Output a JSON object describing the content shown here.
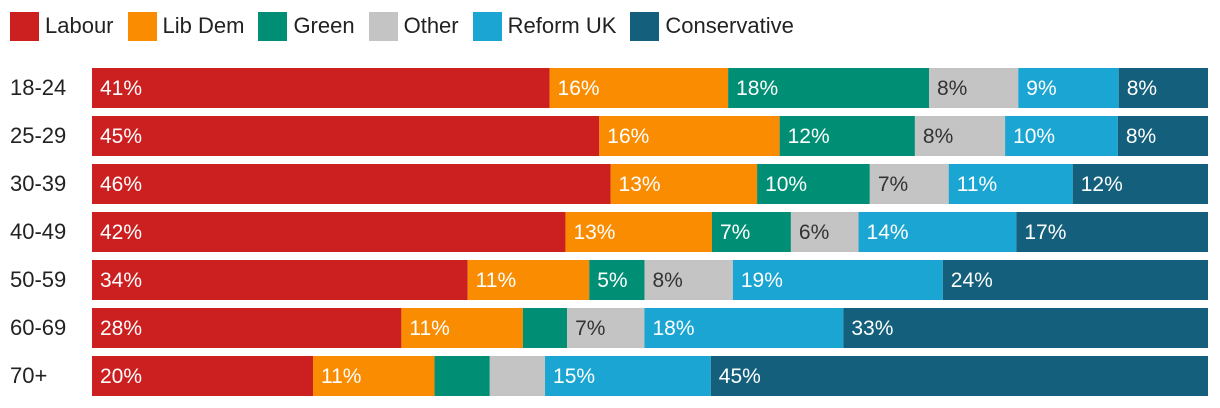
{
  "chart_data": {
    "type": "bar",
    "orientation": "horizontal",
    "stacked": true,
    "normalized": true,
    "title": "",
    "xlabel": "",
    "ylabel": "",
    "xlim": [
      0,
      100
    ],
    "grid": false,
    "legend": "top-left",
    "categories": [
      "18-24",
      "25-29",
      "30-39",
      "40-49",
      "50-59",
      "60-69",
      "70+"
    ],
    "series": [
      {
        "name": "Labour",
        "color": "#cc1f1f",
        "text_color": "#ffffff",
        "values": [
          41,
          45,
          46,
          42,
          34,
          28,
          20
        ],
        "labels": [
          "41%",
          "45%",
          "46%",
          "42%",
          "34%",
          "28%",
          "20%"
        ]
      },
      {
        "name": "Lib Dem",
        "color": "#f98c00",
        "text_color": "#ffffff",
        "values": [
          16,
          16,
          13,
          13,
          11,
          11,
          11
        ],
        "labels": [
          "16%",
          "16%",
          "13%",
          "13%",
          "11%",
          "11%",
          "11%"
        ]
      },
      {
        "name": "Green",
        "color": "#008f75",
        "text_color": "#ffffff",
        "values": [
          18,
          12,
          10,
          7,
          5,
          4,
          5
        ],
        "labels": [
          "18%",
          "12%",
          "10%",
          "7%",
          "5%",
          "",
          ""
        ]
      },
      {
        "name": "Other",
        "color": "#c4c4c4",
        "text_color": "#333333",
        "values": [
          8,
          8,
          7,
          6,
          8,
          7,
          5
        ],
        "labels": [
          "8%",
          "8%",
          "7%",
          "6%",
          "8%",
          "7%",
          ""
        ]
      },
      {
        "name": "Reform UK",
        "color": "#1aa5d2",
        "text_color": "#ffffff",
        "values": [
          9,
          10,
          11,
          14,
          19,
          18,
          15
        ],
        "labels": [
          "9%",
          "10%",
          "11%",
          "14%",
          "19%",
          "18%",
          "15%"
        ]
      },
      {
        "name": "Conservative",
        "color": "#145f7c",
        "text_color": "#ffffff",
        "values": [
          8,
          8,
          12,
          17,
          24,
          33,
          45
        ],
        "labels": [
          "8%",
          "8%",
          "12%",
          "17%",
          "24%",
          "33%",
          "45%"
        ]
      }
    ]
  }
}
